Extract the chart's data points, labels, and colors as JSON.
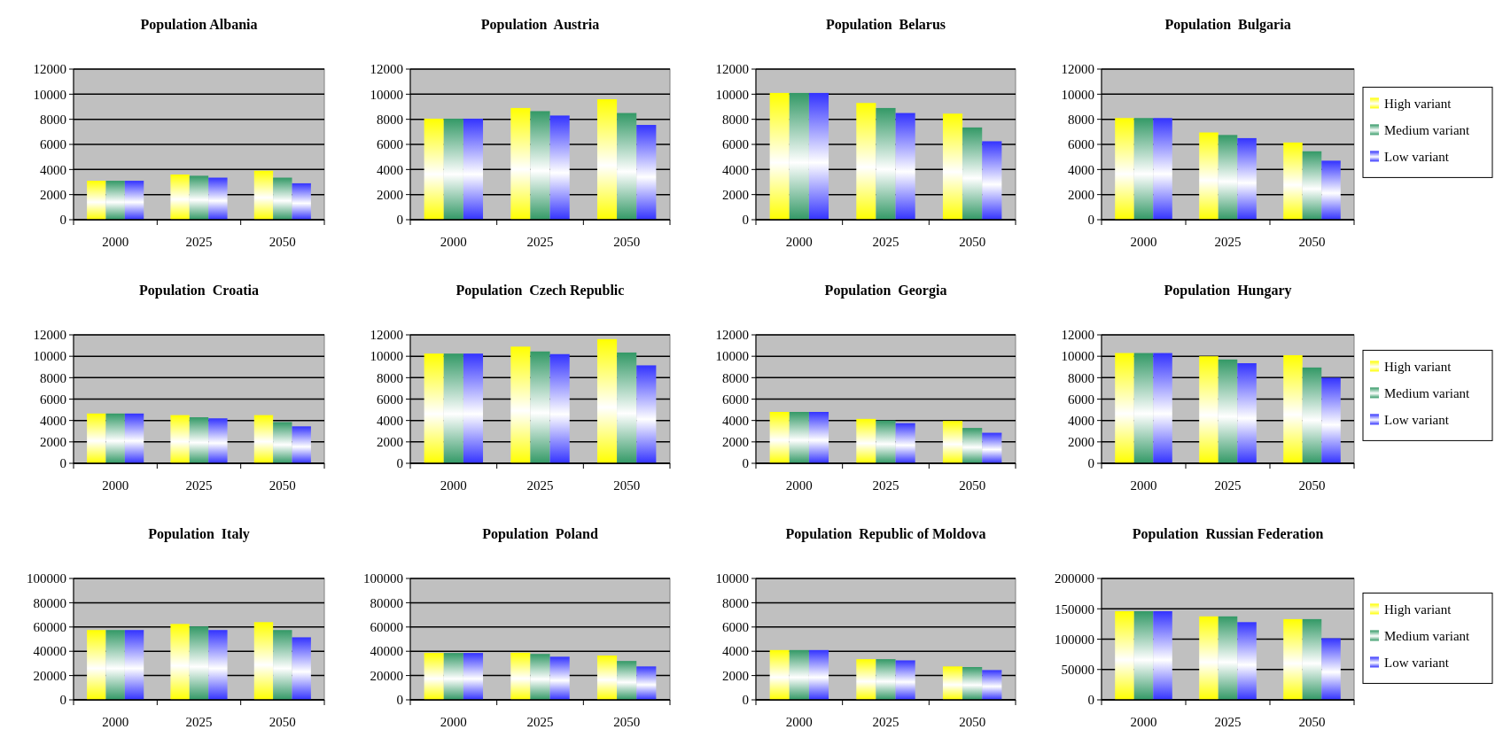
{
  "chart_data": [
    {
      "type": "bar",
      "title": "Population Albania",
      "categories": [
        "2000",
        "2025",
        "2050"
      ],
      "ylim": [
        0,
        12000
      ],
      "yticks": [
        0,
        2000,
        4000,
        6000,
        8000,
        10000,
        12000
      ],
      "grid": "y",
      "legend": false,
      "series": [
        {
          "color": "#ffff00",
          "values": [
            3100,
            3600,
            3900
          ]
        },
        {
          "color": "#339966",
          "values": [
            3100,
            3500,
            3350
          ]
        },
        {
          "color": "#3333ff",
          "values": [
            3100,
            3350,
            2900
          ]
        }
      ]
    },
    {
      "type": "bar",
      "title": "Population  Austria",
      "categories": [
        "2000",
        "2025",
        "2050"
      ],
      "ylim": [
        0,
        12000
      ],
      "yticks": [
        0,
        2000,
        4000,
        6000,
        8000,
        10000,
        12000
      ],
      "grid": "y",
      "legend": false,
      "series": [
        {
          "color": "#ffff00",
          "values": [
            8050,
            8900,
            9600
          ]
        },
        {
          "color": "#339966",
          "values": [
            8050,
            8650,
            8500
          ]
        },
        {
          "color": "#3333ff",
          "values": [
            8050,
            8300,
            7550
          ]
        }
      ]
    },
    {
      "type": "bar",
      "title": "Population  Belarus",
      "categories": [
        "2000",
        "2025",
        "2050"
      ],
      "ylim": [
        0,
        12000
      ],
      "yticks": [
        0,
        2000,
        4000,
        6000,
        8000,
        10000,
        12000
      ],
      "grid": "y",
      "legend": false,
      "series": [
        {
          "color": "#ffff00",
          "values": [
            10100,
            9300,
            8450
          ]
        },
        {
          "color": "#339966",
          "values": [
            10100,
            8900,
            7350
          ]
        },
        {
          "color": "#3333ff",
          "values": [
            10100,
            8500,
            6250
          ]
        }
      ]
    },
    {
      "type": "bar",
      "title": "Population  Bulgaria",
      "categories": [
        "2000",
        "2025",
        "2050"
      ],
      "ylim": [
        0,
        12000
      ],
      "yticks": [
        0,
        2000,
        4000,
        6000,
        8000,
        10000,
        12000
      ],
      "grid": "y",
      "legend": "right",
      "series": [
        {
          "name": "High variant",
          "color": "#ffff00",
          "values": [
            8100,
            6950,
            6150
          ]
        },
        {
          "name": "Medium variant",
          "color": "#339966",
          "values": [
            8100,
            6750,
            5450
          ]
        },
        {
          "name": "Low variant",
          "color": "#3333ff",
          "values": [
            8100,
            6500,
            4700
          ]
        }
      ]
    },
    {
      "type": "bar",
      "title": "Population  Croatia",
      "categories": [
        "2000",
        "2025",
        "2050"
      ],
      "ylim": [
        0,
        12000
      ],
      "yticks": [
        0,
        2000,
        4000,
        6000,
        8000,
        10000,
        12000
      ],
      "grid": "y",
      "legend": false,
      "series": [
        {
          "color": "#ffff00",
          "values": [
            4650,
            4500,
            4500
          ]
        },
        {
          "color": "#339966",
          "values": [
            4650,
            4300,
            3850
          ]
        },
        {
          "color": "#3333ff",
          "values": [
            4650,
            4200,
            3450
          ]
        }
      ]
    },
    {
      "type": "bar",
      "title": "Population  Czech Republic",
      "categories": [
        "2000",
        "2025",
        "2050"
      ],
      "ylim": [
        0,
        12000
      ],
      "yticks": [
        0,
        2000,
        4000,
        6000,
        8000,
        10000,
        12000
      ],
      "grid": "y",
      "legend": false,
      "series": [
        {
          "color": "#ffff00",
          "values": [
            10250,
            10900,
            11600
          ]
        },
        {
          "color": "#339966",
          "values": [
            10250,
            10450,
            10350
          ]
        },
        {
          "color": "#3333ff",
          "values": [
            10250,
            10200,
            9150
          ]
        }
      ]
    },
    {
      "type": "bar",
      "title": "Population  Georgia",
      "categories": [
        "2000",
        "2025",
        "2050"
      ],
      "ylim": [
        0,
        12000
      ],
      "yticks": [
        0,
        2000,
        4000,
        6000,
        8000,
        10000,
        12000
      ],
      "grid": "y",
      "legend": false,
      "series": [
        {
          "color": "#ffff00",
          "values": [
            4800,
            4150,
            3950
          ]
        },
        {
          "color": "#339966",
          "values": [
            4800,
            4000,
            3300
          ]
        },
        {
          "color": "#3333ff",
          "values": [
            4800,
            3750,
            2850
          ]
        }
      ]
    },
    {
      "type": "bar",
      "title": "Population  Hungary",
      "categories": [
        "2000",
        "2025",
        "2050"
      ],
      "ylim": [
        0,
        12000
      ],
      "yticks": [
        0,
        2000,
        4000,
        6000,
        8000,
        10000,
        12000
      ],
      "grid": "y",
      "legend": "right",
      "series": [
        {
          "name": "High variant",
          "color": "#ffff00",
          "values": [
            10300,
            10000,
            10100
          ]
        },
        {
          "name": "Medium variant",
          "color": "#339966",
          "values": [
            10300,
            9700,
            8950
          ]
        },
        {
          "name": "Low variant",
          "color": "#3333ff",
          "values": [
            10300,
            9350,
            8000
          ]
        }
      ]
    },
    {
      "type": "bar",
      "title": "Population  Italy",
      "categories": [
        "2000",
        "2025",
        "2050"
      ],
      "ylim": [
        0,
        100000
      ],
      "yticks": [
        0,
        20000,
        40000,
        60000,
        80000,
        100000
      ],
      "grid": "y",
      "legend": false,
      "series": [
        {
          "color": "#ffff00",
          "values": [
            57500,
            62500,
            64000
          ]
        },
        {
          "color": "#339966",
          "values": [
            57500,
            60500,
            57500
          ]
        },
        {
          "color": "#3333ff",
          "values": [
            57500,
            57500,
            51500
          ]
        }
      ]
    },
    {
      "type": "bar",
      "title": "Population  Poland",
      "categories": [
        "2000",
        "2025",
        "2050"
      ],
      "ylim": [
        0,
        100000
      ],
      "yticks": [
        0,
        20000,
        40000,
        60000,
        80000,
        100000
      ],
      "grid": "y",
      "legend": false,
      "series": [
        {
          "color": "#ffff00",
          "values": [
            38600,
            38800,
            36500
          ]
        },
        {
          "color": "#339966",
          "values": [
            38600,
            37800,
            32000
          ]
        },
        {
          "color": "#3333ff",
          "values": [
            38600,
            35500,
            27500
          ]
        }
      ]
    },
    {
      "type": "bar",
      "title": "Population  Republic of Moldova",
      "categories": [
        "2000",
        "2025",
        "2050"
      ],
      "ylim": [
        0,
        10000
      ],
      "yticks": [
        0,
        2000,
        4000,
        6000,
        8000,
        10000
      ],
      "grid": "y",
      "legend": false,
      "series": [
        {
          "color": "#ffff00",
          "values": [
            4100,
            3350,
            2750
          ]
        },
        {
          "color": "#339966",
          "values": [
            4100,
            3350,
            2700
          ]
        },
        {
          "color": "#3333ff",
          "values": [
            4100,
            3250,
            2450
          ]
        }
      ]
    },
    {
      "type": "bar",
      "title": "Population  Russian Federation",
      "categories": [
        "2000",
        "2025",
        "2050"
      ],
      "ylim": [
        0,
        200000
      ],
      "yticks": [
        0,
        50000,
        100000,
        150000,
        200000
      ],
      "grid": "y",
      "legend": "right",
      "series": [
        {
          "name": "High variant",
          "color": "#ffff00",
          "values": [
            146000,
            137500,
            133000
          ]
        },
        {
          "name": "Medium variant",
          "color": "#339966",
          "values": [
            146000,
            137500,
            133000
          ]
        },
        {
          "name": "Low variant",
          "color": "#3333ff",
          "values": [
            146000,
            128000,
            101500
          ]
        }
      ]
    }
  ]
}
